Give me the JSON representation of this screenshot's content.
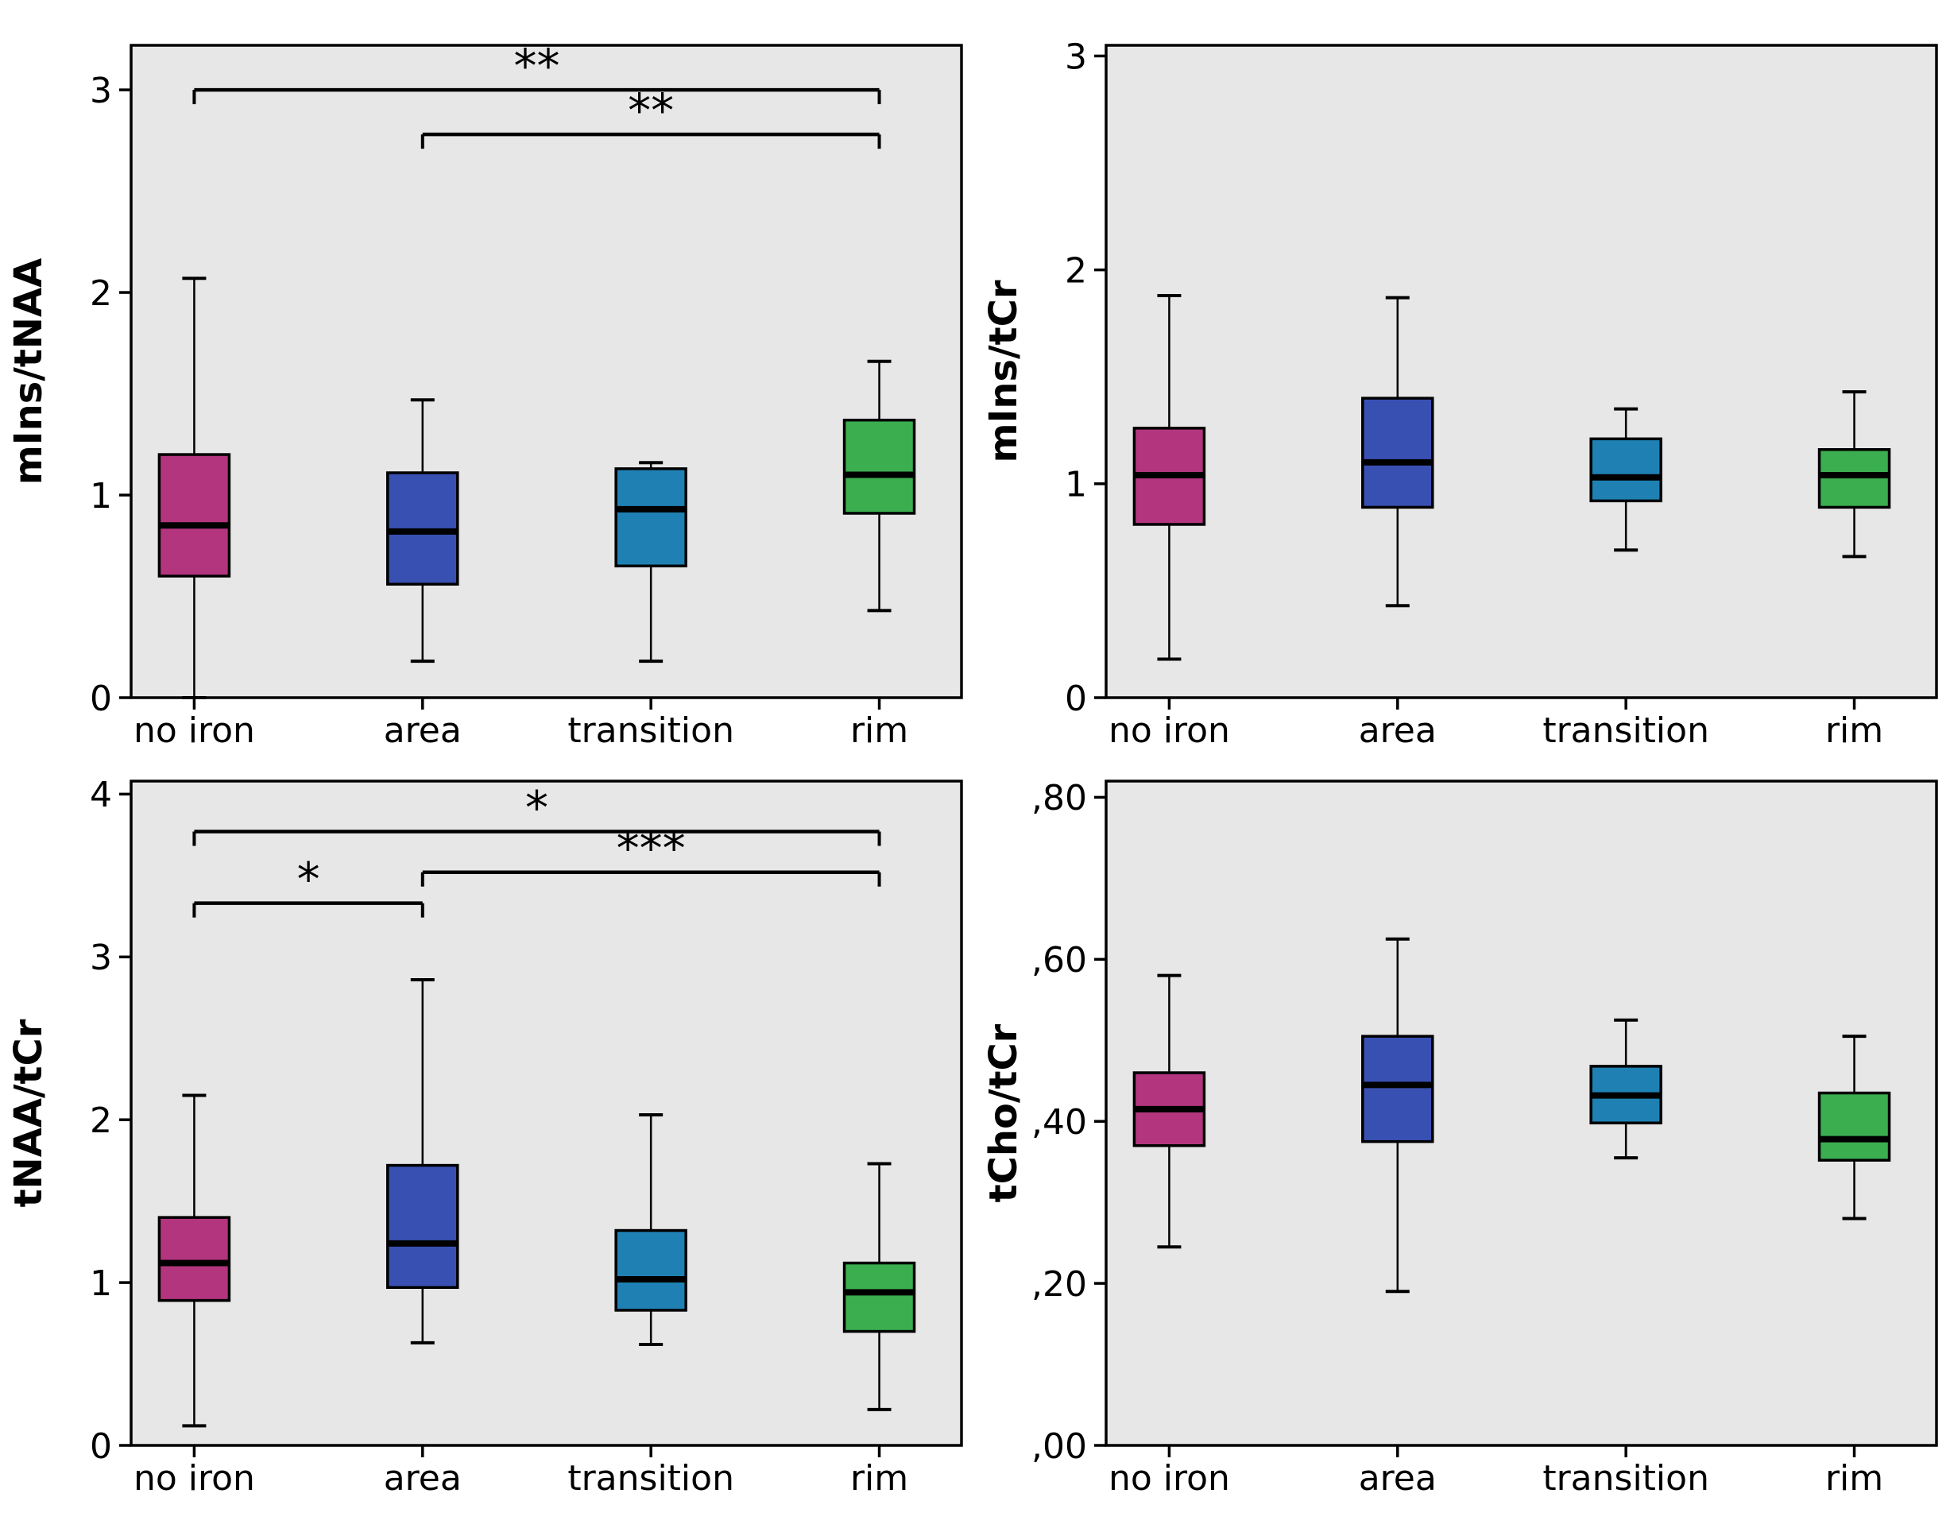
{
  "figure": {
    "background": "#ffffff",
    "panel_background": "#e7e7e7",
    "frame_color": "#000000",
    "text_color": "#000000",
    "categories": [
      "no iron",
      "area",
      "transition",
      "rim"
    ],
    "group_colors": {
      "no iron": "#b2357e",
      "area": "#3950b3",
      "transition": "#1f81b3",
      "rim": "#3bae4f"
    }
  },
  "chart_data": [
    {
      "type": "box",
      "title": "",
      "xlabel": "",
      "ylabel": "mIns/tNAA",
      "categories": [
        "no iron",
        "area",
        "transition",
        "rim"
      ],
      "ylim": [
        0,
        3.22
      ],
      "grid": false,
      "yticks": [
        {
          "value": 0,
          "label": "0"
        },
        {
          "value": 1,
          "label": "1"
        },
        {
          "value": 2,
          "label": "2"
        },
        {
          "value": 3,
          "label": "3"
        }
      ],
      "boxes": [
        {
          "category": "no iron",
          "whisker_low": 0.0,
          "q1": 0.6,
          "median": 0.85,
          "q3": 1.2,
          "whisker_high": 2.07
        },
        {
          "category": "area",
          "whisker_low": 0.18,
          "q1": 0.56,
          "median": 0.82,
          "q3": 1.11,
          "whisker_high": 1.47
        },
        {
          "category": "transition",
          "whisker_low": 0.18,
          "q1": 0.65,
          "median": 0.93,
          "q3": 1.13,
          "whisker_high": 1.16
        },
        {
          "category": "rim",
          "whisker_low": 0.43,
          "q1": 0.91,
          "median": 1.1,
          "q3": 1.37,
          "whisker_high": 1.66
        }
      ],
      "significance": [
        {
          "from": "no iron",
          "to": "rim",
          "y": 3.0,
          "label": "**"
        },
        {
          "from": "area",
          "to": "rim",
          "y": 2.78,
          "label": "**"
        }
      ]
    },
    {
      "type": "box",
      "title": "",
      "xlabel": "",
      "ylabel": "mIns/tCr",
      "categories": [
        "no iron",
        "area",
        "transition",
        "rim"
      ],
      "ylim": [
        0,
        3.05
      ],
      "grid": false,
      "yticks": [
        {
          "value": 0,
          "label": "0"
        },
        {
          "value": 1,
          "label": "1"
        },
        {
          "value": 2,
          "label": "2"
        },
        {
          "value": 3,
          "label": "3"
        }
      ],
      "boxes": [
        {
          "category": "no iron",
          "whisker_low": 0.18,
          "q1": 0.81,
          "median": 1.04,
          "q3": 1.26,
          "whisker_high": 1.88
        },
        {
          "category": "area",
          "whisker_low": 0.43,
          "q1": 0.89,
          "median": 1.1,
          "q3": 1.4,
          "whisker_high": 1.87
        },
        {
          "category": "transition",
          "whisker_low": 0.69,
          "q1": 0.92,
          "median": 1.03,
          "q3": 1.21,
          "whisker_high": 1.35
        },
        {
          "category": "rim",
          "whisker_low": 0.66,
          "q1": 0.89,
          "median": 1.04,
          "q3": 1.16,
          "whisker_high": 1.43
        }
      ],
      "significance": []
    },
    {
      "type": "box",
      "title": "",
      "xlabel": "",
      "ylabel": "tNAA/tCr",
      "categories": [
        "no iron",
        "area",
        "transition",
        "rim"
      ],
      "ylim": [
        0,
        4.08
      ],
      "grid": false,
      "yticks": [
        {
          "value": 0,
          "label": "0"
        },
        {
          "value": 1,
          "label": "1"
        },
        {
          "value": 2,
          "label": "2"
        },
        {
          "value": 3,
          "label": "3"
        },
        {
          "value": 4,
          "label": "4"
        }
      ],
      "boxes": [
        {
          "category": "no iron",
          "whisker_low": 0.12,
          "q1": 0.89,
          "median": 1.12,
          "q3": 1.4,
          "whisker_high": 2.15
        },
        {
          "category": "area",
          "whisker_low": 0.63,
          "q1": 0.97,
          "median": 1.24,
          "q3": 1.72,
          "whisker_high": 2.86
        },
        {
          "category": "transition",
          "whisker_low": 0.62,
          "q1": 0.83,
          "median": 1.02,
          "q3": 1.32,
          "whisker_high": 2.03
        },
        {
          "category": "rim",
          "whisker_low": 0.22,
          "q1": 0.7,
          "median": 0.94,
          "q3": 1.12,
          "whisker_high": 1.73
        }
      ],
      "significance": [
        {
          "from": "no iron",
          "to": "rim",
          "y": 3.77,
          "label": "*"
        },
        {
          "from": "area",
          "to": "rim",
          "y": 3.52,
          "label": "***"
        },
        {
          "from": "no iron",
          "to": "area",
          "y": 3.33,
          "label": "*"
        }
      ]
    },
    {
      "type": "box",
      "title": "",
      "xlabel": "",
      "ylabel": "tCho/tCr",
      "categories": [
        "no iron",
        "area",
        "transition",
        "rim"
      ],
      "ylim": [
        0,
        0.82
      ],
      "grid": false,
      "yticks": [
        {
          "value": 0.0,
          "label": ",00"
        },
        {
          "value": 0.2,
          "label": ",20"
        },
        {
          "value": 0.4,
          "label": ",40"
        },
        {
          "value": 0.6,
          "label": ",60"
        },
        {
          "value": 0.8,
          "label": ",80"
        }
      ],
      "boxes": [
        {
          "category": "no iron",
          "whisker_low": 0.245,
          "q1": 0.37,
          "median": 0.415,
          "q3": 0.46,
          "whisker_high": 0.58
        },
        {
          "category": "area",
          "whisker_low": 0.19,
          "q1": 0.375,
          "median": 0.445,
          "q3": 0.505,
          "whisker_high": 0.625
        },
        {
          "category": "transition",
          "whisker_low": 0.355,
          "q1": 0.398,
          "median": 0.432,
          "q3": 0.468,
          "whisker_high": 0.525
        },
        {
          "category": "rim",
          "whisker_low": 0.28,
          "q1": 0.352,
          "median": 0.378,
          "q3": 0.435,
          "whisker_high": 0.505
        }
      ],
      "significance": []
    }
  ]
}
